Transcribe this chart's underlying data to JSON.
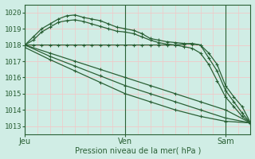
{
  "xlabel": "Pression niveau de la mer( hPa )",
  "ylim": [
    1012.5,
    1020.5
  ],
  "xlim": [
    0,
    54
  ],
  "yticks": [
    1013,
    1014,
    1015,
    1016,
    1017,
    1018,
    1019,
    1020
  ],
  "ytick_labels": [
    "1013",
    "1014",
    "1015",
    "1016",
    "1017",
    "1018",
    "1019",
    "1020"
  ],
  "day_lines": [
    0,
    24,
    48
  ],
  "xtick_positions": [
    0,
    24,
    48
  ],
  "xtick_labels": [
    "Jeu",
    "Ven",
    "Sam"
  ],
  "bg_color": "#d0ede5",
  "grid_minor_color": "#f0c8c8",
  "grid_major_color": "#e0b0b0",
  "line_color": "#2a6035",
  "series": [
    {
      "x": [
        0,
        2,
        4,
        6,
        8,
        10,
        12,
        14,
        16,
        18,
        20,
        22,
        24,
        26,
        28,
        30,
        32,
        34,
        36,
        38,
        40,
        42,
        44,
        46,
        48,
        50,
        52,
        54
      ],
      "y": [
        1018.0,
        1018.5,
        1019.0,
        1019.3,
        1019.6,
        1019.8,
        1019.85,
        1019.7,
        1019.6,
        1019.5,
        1019.3,
        1019.1,
        1019.0,
        1018.9,
        1018.7,
        1018.4,
        1018.3,
        1018.2,
        1018.15,
        1018.1,
        1018.05,
        1018.0,
        1017.5,
        1016.8,
        1015.5,
        1014.8,
        1014.2,
        1013.2
      ]
    },
    {
      "x": [
        0,
        2,
        4,
        6,
        8,
        10,
        12,
        14,
        16,
        18,
        20,
        22,
        24,
        26,
        28,
        30,
        32,
        34,
        36,
        38,
        40,
        42,
        44,
        46,
        48,
        50,
        52,
        54
      ],
      "y": [
        1018.0,
        1018.3,
        1018.8,
        1019.1,
        1019.4,
        1019.5,
        1019.55,
        1019.45,
        1019.3,
        1019.15,
        1019.0,
        1018.85,
        1018.8,
        1018.7,
        1018.5,
        1018.3,
        1018.15,
        1018.05,
        1018.0,
        1018.05,
        1018.1,
        1018.0,
        1017.2,
        1016.4,
        1015.2,
        1014.5,
        1013.8,
        1013.2
      ]
    },
    {
      "x": [
        0,
        2,
        4,
        6,
        8,
        10,
        12,
        14,
        16,
        18,
        20,
        22,
        24,
        26,
        28,
        30,
        32,
        34,
        36,
        38,
        40,
        42,
        44,
        46,
        48,
        50,
        52,
        54
      ],
      "y": [
        1018.0,
        1018.0,
        1018.0,
        1018.0,
        1018.0,
        1018.0,
        1018.0,
        1018.0,
        1018.0,
        1018.0,
        1018.0,
        1018.0,
        1018.0,
        1018.0,
        1018.0,
        1018.0,
        1018.0,
        1018.0,
        1018.0,
        1017.9,
        1017.8,
        1017.5,
        1016.8,
        1015.8,
        1014.8,
        1014.2,
        1013.6,
        1013.2
      ]
    },
    {
      "x": [
        0,
        6,
        12,
        18,
        24,
        30,
        36,
        42,
        48,
        54
      ],
      "y": [
        1018.0,
        1017.5,
        1017.0,
        1016.5,
        1016.0,
        1015.5,
        1015.0,
        1014.5,
        1014.0,
        1013.2
      ]
    },
    {
      "x": [
        0,
        6,
        12,
        18,
        24,
        30,
        36,
        42,
        48,
        54
      ],
      "y": [
        1018.0,
        1017.3,
        1016.7,
        1016.1,
        1015.5,
        1015.0,
        1014.5,
        1014.0,
        1013.5,
        1013.2
      ]
    },
    {
      "x": [
        0,
        6,
        12,
        18,
        24,
        30,
        36,
        42,
        48,
        54
      ],
      "y": [
        1017.85,
        1017.1,
        1016.4,
        1015.7,
        1015.0,
        1014.5,
        1014.0,
        1013.6,
        1013.3,
        1013.2
      ]
    }
  ]
}
